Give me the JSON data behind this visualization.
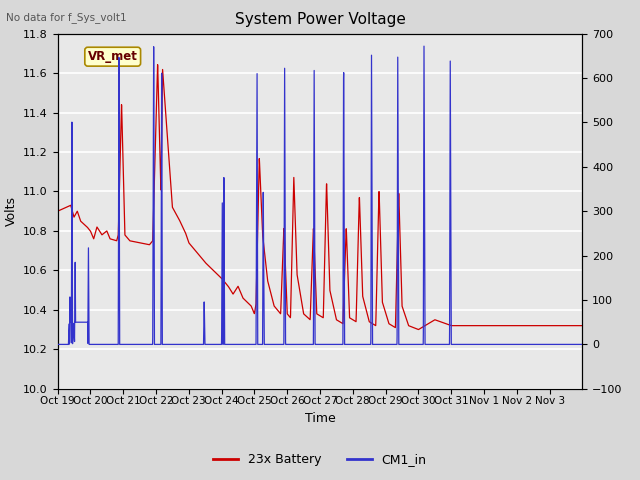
{
  "title": "System Power Voltage",
  "top_left_text": "No data for f_Sys_volt1",
  "ylabel_left": "Volts",
  "xlabel": "Time",
  "ylim_left": [
    10.0,
    11.8
  ],
  "ylim_right": [
    -100,
    700
  ],
  "bg_color": "#d8d8d8",
  "plot_bg_color": "#e0e0e0",
  "grid_color": "#c0c0c0",
  "xtick_labels": [
    "Oct 19",
    "Oct 20",
    "Oct 21",
    "Oct 22",
    "Oct 23",
    "Oct 24",
    "Oct 25",
    "Oct 26",
    "Oct 27",
    "Oct 28",
    "Oct 29",
    "Oct 30",
    "Oct 31",
    "Nov 1",
    "Nov 2",
    "Nov 3"
  ],
  "legend_entries": [
    "23x Battery",
    "CM1_in"
  ],
  "legend_colors": [
    "#cc0000",
    "#0000cc"
  ],
  "vr_met_label": "VR_met"
}
